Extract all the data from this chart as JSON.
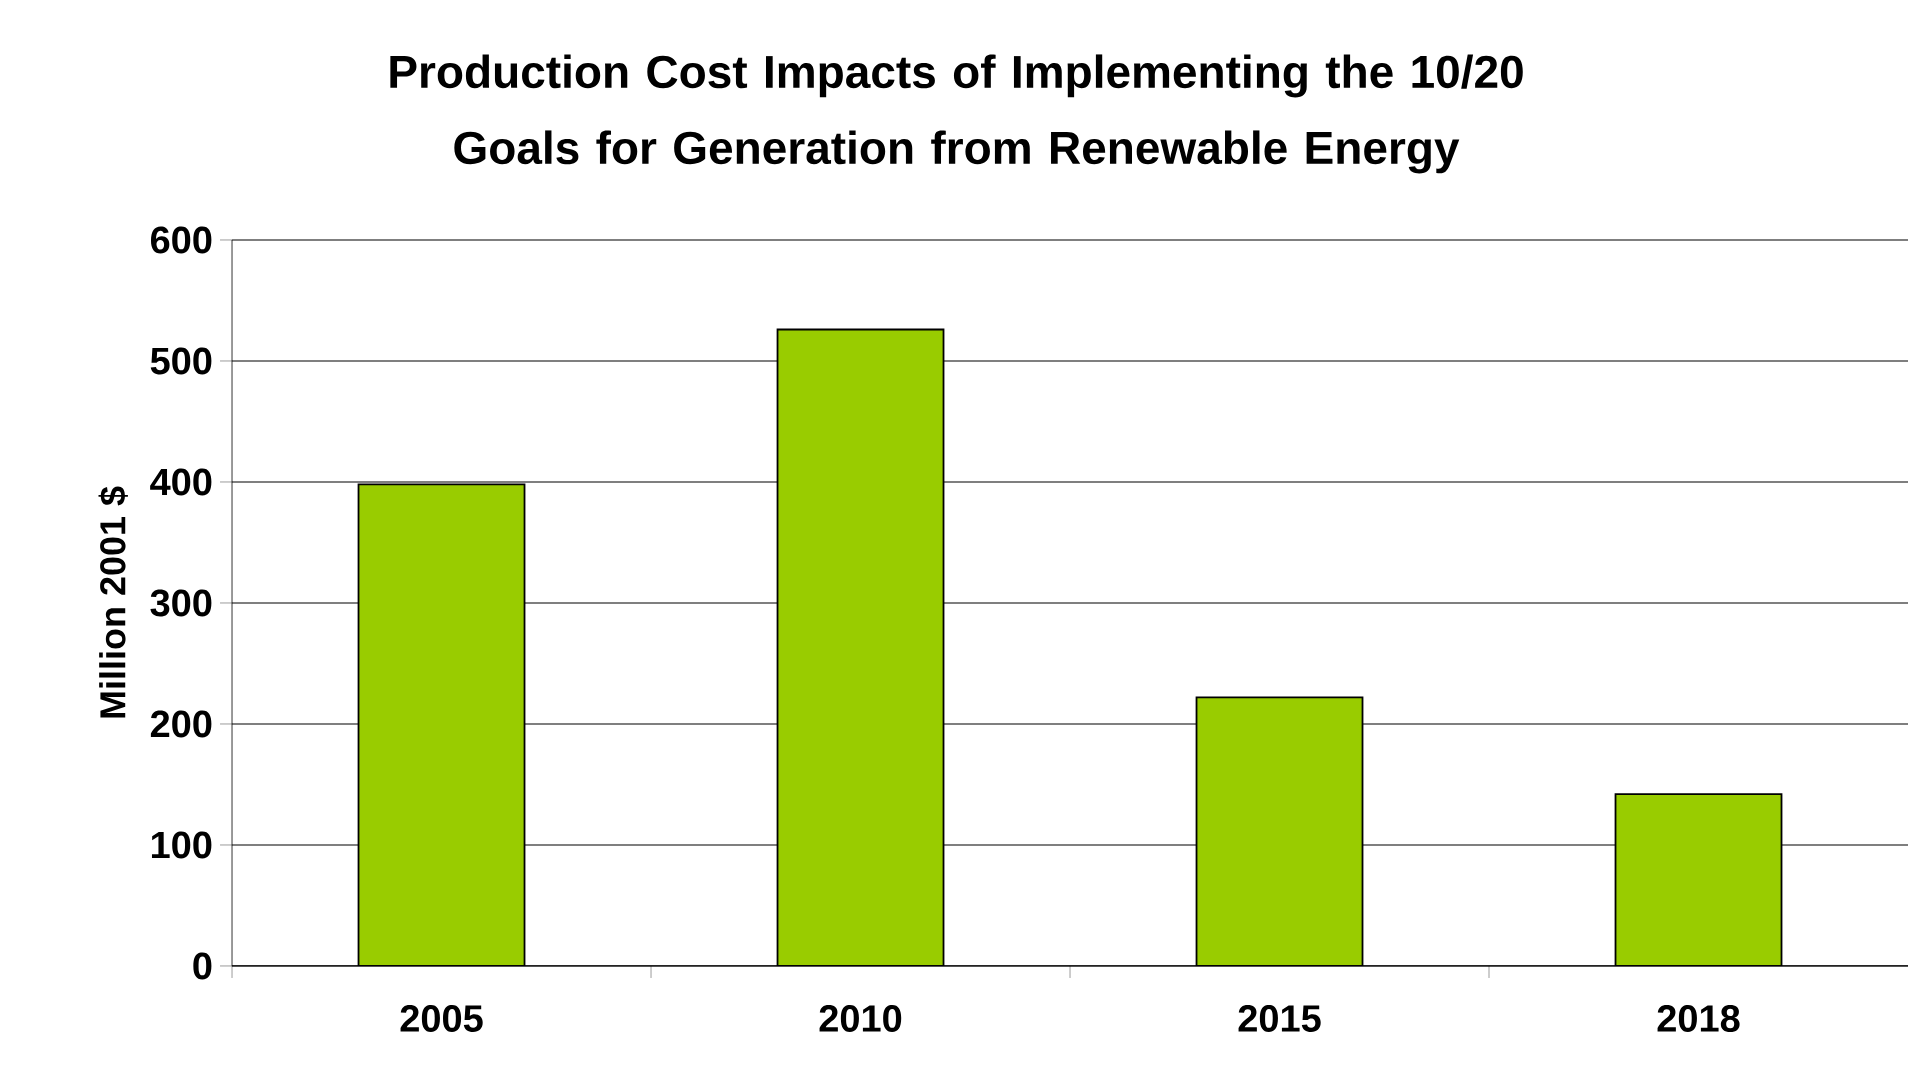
{
  "chart_data": {
    "type": "bar",
    "title": "Production Cost Impacts of Implementing the 10/20 Goals for Generation from Renewable Energy",
    "ylabel": "Million 2001 $",
    "categories": [
      "2005",
      "2010",
      "2015",
      "2018"
    ],
    "values": [
      398,
      526,
      222,
      142
    ],
    "color": "#99cc00",
    "ylim": [
      0,
      600
    ],
    "yticks": [
      0,
      100,
      200,
      300,
      400,
      500,
      600
    ],
    "grid": "y"
  }
}
